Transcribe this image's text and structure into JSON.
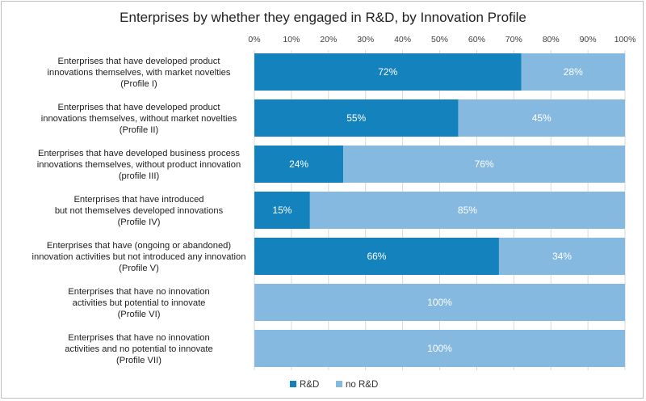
{
  "chart_data": {
    "type": "bar",
    "orientation": "horizontal",
    "stacked": true,
    "title": "Enterprises by whether they engaged in R&D, by Innovation Profile",
    "xlabel": "",
    "ylabel": "",
    "xlim": [
      0,
      100
    ],
    "x_ticks": [
      "0%",
      "10%",
      "20%",
      "30%",
      "40%",
      "50%",
      "60%",
      "70%",
      "80%",
      "90%",
      "100%"
    ],
    "categories": [
      [
        "Enterprises that have developed product",
        "innovations themselves, with market novelties",
        "(Profile I)"
      ],
      [
        "Enterprises that have developed product",
        "innovations themselves, without market novelties",
        "(Profile II)"
      ],
      [
        "Enterprises that have developed business process",
        "innovations themselves, without product innovation",
        "(profile III)"
      ],
      [
        "Enterprises that have introduced",
        "but not themselves developed innovations",
        "(Profile IV)"
      ],
      [
        "Enterprises that have (ongoing or abandoned)",
        "innovation activities but not introduced any innovation",
        "(Profile V)"
      ],
      [
        "Enterprises that have no innovation",
        "activities but potential to innovate",
        "(Profile VI)"
      ],
      [
        "Enterprises that have no innovation",
        "activities and no potential to innovate",
        "(Profile VII)"
      ]
    ],
    "series": [
      {
        "name": "R&D",
        "color": "#1483bd",
        "values": [
          72,
          55,
          24,
          15,
          66,
          0,
          0
        ],
        "labels": [
          "72%",
          "55%",
          "24%",
          "15%",
          "66%",
          "",
          ""
        ]
      },
      {
        "name": "no R&D",
        "color": "#86b9e0",
        "values": [
          28,
          45,
          76,
          85,
          34,
          100,
          100
        ],
        "labels": [
          "28%",
          "45%",
          "76%",
          "85%",
          "34%",
          "100%",
          "100%"
        ]
      }
    ],
    "legend_position": "bottom",
    "grid": true
  }
}
